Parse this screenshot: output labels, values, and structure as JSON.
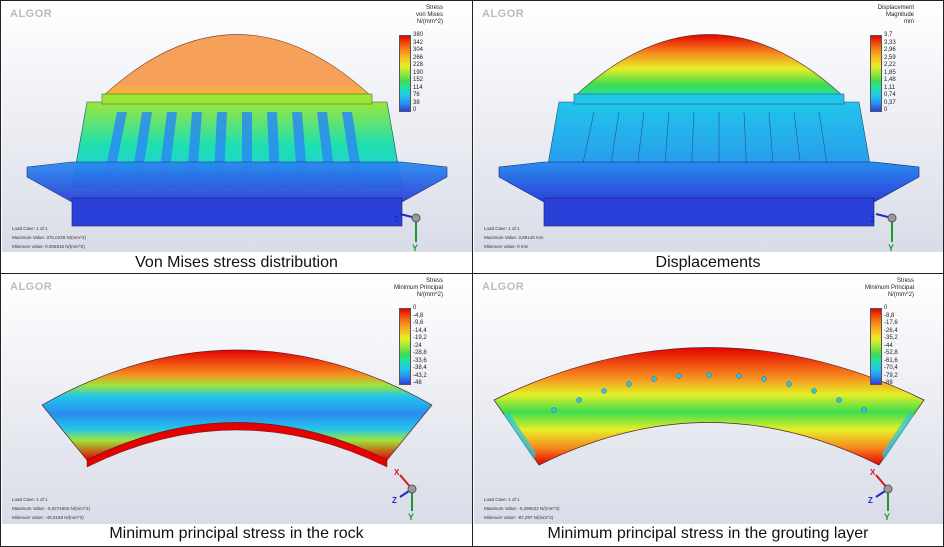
{
  "panels": [
    {
      "id": "von-mises",
      "caption": "Von Mises stress distribution",
      "logo": "ALGOR",
      "legend": {
        "title": [
          "Stress",
          "von Mises",
          "N/(mm^2)"
        ],
        "ticks": [
          "380",
          "342",
          "304",
          "266",
          "228",
          "190",
          "152",
          "114",
          "76",
          "38",
          "0"
        ]
      },
      "info": [
        "Load Case:  1 of 1",
        "Maximum Value: 376,0228 N/(mm^2)",
        "Minimum Value: 0,006915 N/(mm^2)"
      ]
    },
    {
      "id": "displacements",
      "caption": "Displacements",
      "logo": "ALGOR",
      "legend": {
        "title": [
          "Displacement",
          "Magnitude",
          "mm"
        ],
        "ticks": [
          "3,7",
          "3,33",
          "2,96",
          "2,59",
          "2,22",
          "1,85",
          "1,48",
          "1,11",
          "0,74",
          "0,37",
          "0"
        ]
      },
      "info": [
        "Load Case:  1 of 1",
        "Maximum Value: 3,68145 mm",
        "Minimum Value: 0 mm"
      ]
    },
    {
      "id": "min-principal-rock",
      "caption": "Minimum principal stress in the rock",
      "logo": "ALGOR",
      "legend": {
        "title": [
          "Stress",
          "Minimum Principal",
          "N/(mm^2)"
        ],
        "ticks": [
          "0",
          "-4,8",
          "-9,6",
          "-14,4",
          "-19,2",
          "-24",
          "-28,8",
          "-33,6",
          "-38,4",
          "-43,2",
          "-48"
        ]
      },
      "info": [
        "Load Case:  1 of 1",
        "Maximum Value: -0,0274602 N/(mm^2)",
        "Minimum Value: -48,0158 N/(mm^2)"
      ]
    },
    {
      "id": "min-principal-grout",
      "caption": "Minimum principal stress in the grouting layer",
      "logo": "ALGOR",
      "legend": {
        "title": [
          "Stress",
          "Minimum Principal",
          "N/(mm^2)"
        ],
        "ticks": [
          "0",
          "-8,8",
          "-17,6",
          "-26,4",
          "-35,2",
          "-44",
          "-52,8",
          "-61,6",
          "-70,4",
          "-79,2",
          "-88"
        ]
      },
      "info": [
        "Load Case:  1 of 1",
        "Maximum Value: -0,396022 N/(mm^2)",
        "Minimum Value: -87,297 N/(mm^2)"
      ]
    }
  ],
  "axes": {
    "x": "X",
    "y": "Y",
    "z": "Z"
  },
  "colors": {
    "scale": [
      "#e60000",
      "#f2500a",
      "#f78c1e",
      "#f5c21f",
      "#e5ef27",
      "#9ce63a",
      "#3fdc4e",
      "#1fe0b0",
      "#22c6ea",
      "#2a8cf0",
      "#2b40d8"
    ]
  }
}
